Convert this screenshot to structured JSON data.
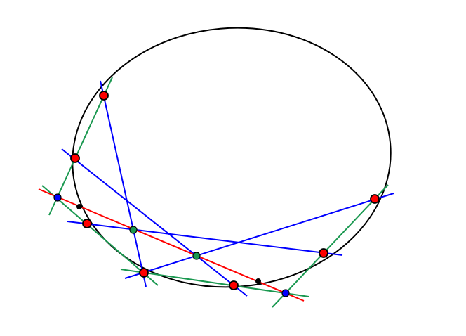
{
  "figure": {
    "colors": {
      "background": "#ffffff",
      "conic": "#000000",
      "pascal_line": "#ff0000",
      "blue_lines": "#0000ff",
      "green_lines": "#1a9850",
      "conic_points": "#ff0000",
      "blue_points": "#0000ff",
      "green_points": "#1a9850",
      "black_points": "#000000"
    },
    "legend": "none"
  }
}
